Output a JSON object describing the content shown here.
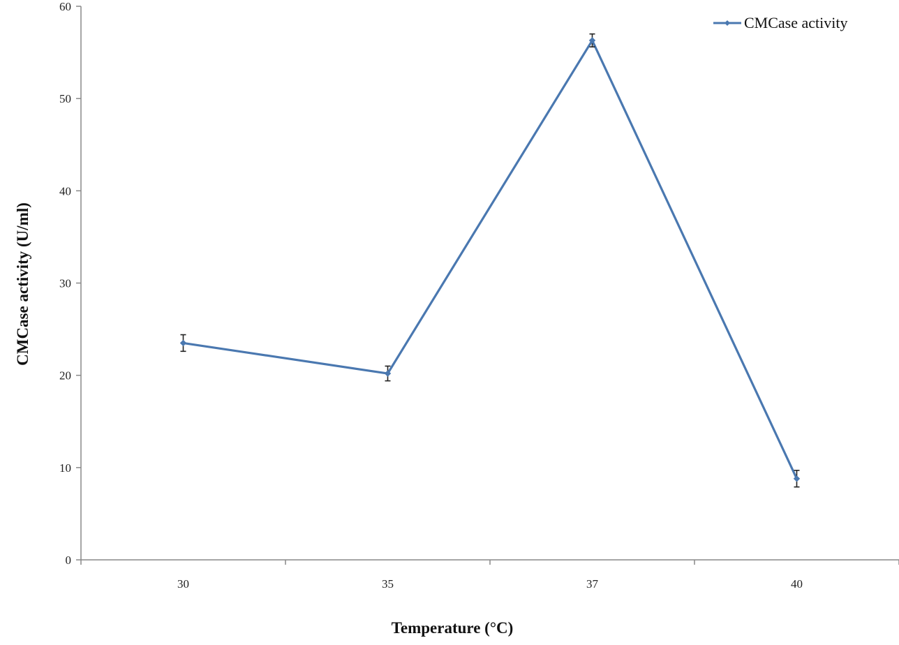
{
  "chart_data": {
    "type": "line",
    "categories": [
      "30",
      "35",
      "37",
      "40"
    ],
    "series": [
      {
        "name": "CMCase activity",
        "values": [
          23.5,
          20.2,
          56.3,
          8.8
        ],
        "error": [
          0.9,
          0.8,
          0.7,
          0.9
        ],
        "color": "#4a78b0"
      }
    ],
    "xlabel": "Temperature (°C)",
    "ylabel": "CMCase activity (U/ml)",
    "ylim": [
      0,
      60
    ],
    "yticks": [
      "0",
      "10",
      "20",
      "30",
      "40",
      "50",
      "60"
    ],
    "grid": false,
    "legend": "top-right",
    "error_bar_color": "#222222",
    "axis_color": "#888888"
  }
}
